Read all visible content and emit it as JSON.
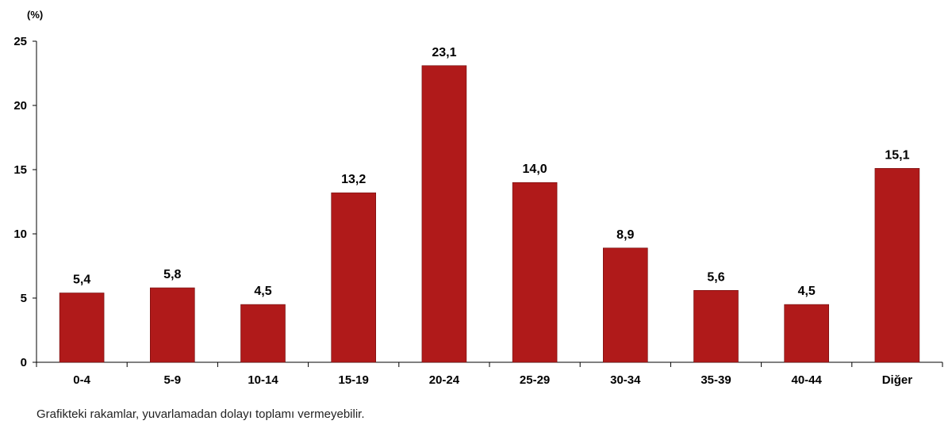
{
  "chart_data": {
    "type": "bar",
    "unit_label": "(%)",
    "categories": [
      "0-4",
      "5-9",
      "10-14",
      "15-19",
      "20-24",
      "25-29",
      "30-34",
      "35-39",
      "40-44",
      "Diğer"
    ],
    "values": [
      5.4,
      5.8,
      4.5,
      13.2,
      23.1,
      14.0,
      8.9,
      5.6,
      4.5,
      15.1
    ],
    "data_labels": [
      "5,4",
      "5,8",
      "4,5",
      "13,2",
      "23,1",
      "14,0",
      "8,9",
      "5,6",
      "4,5",
      "15,1"
    ],
    "ylim": [
      0,
      25
    ],
    "yticks": [
      0,
      5,
      10,
      15,
      20,
      25
    ],
    "bar_color": "#B01A1A",
    "grid": false,
    "legend": "none"
  },
  "footnote": "Grafikteki rakamlar, yuvarlamadan dolayı toplamı vermeyebilir."
}
